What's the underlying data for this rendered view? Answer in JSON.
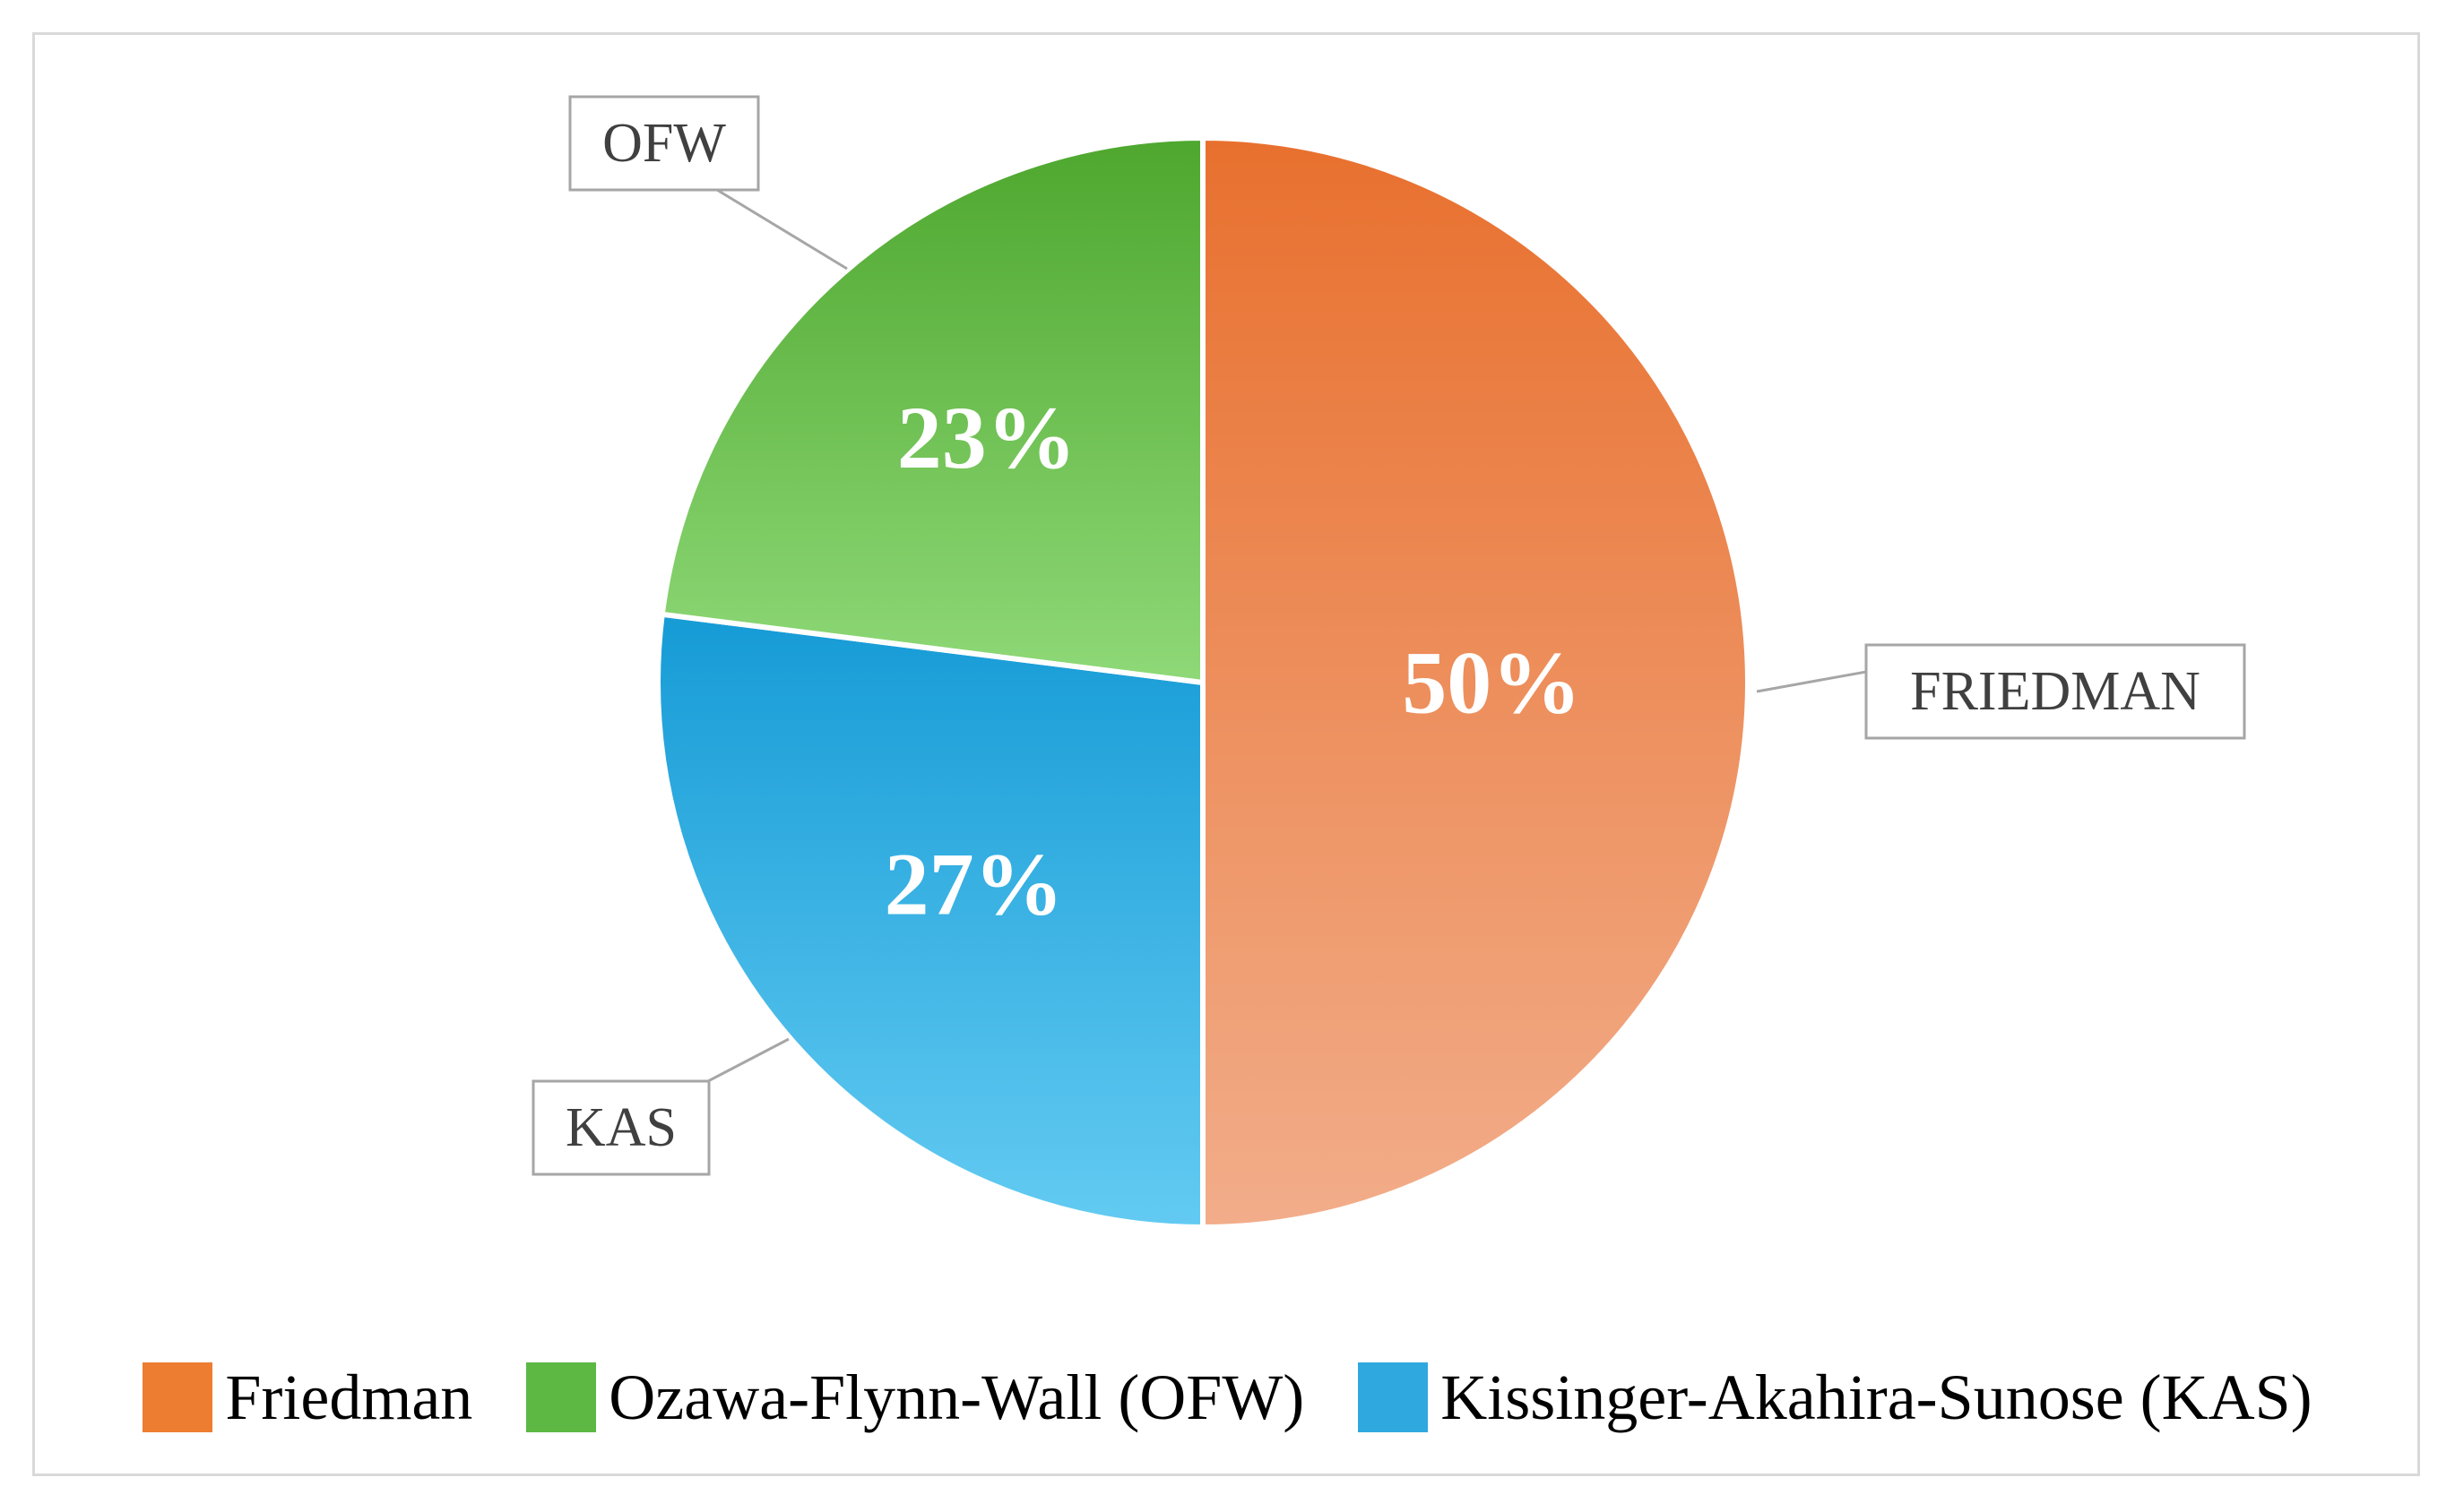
{
  "chart_data": {
    "type": "pie",
    "title": "",
    "slices": [
      {
        "name": "Friedman",
        "callout": "FRIEDMAN",
        "value": 50,
        "label": "50%",
        "color_top": "#e8702e",
        "color_bottom": "#f2ad8a",
        "legend_color": "#ed7d31"
      },
      {
        "name": "Kissinger-Akahira-Sunose (KAS)",
        "callout": "KAS",
        "value": 27,
        "label": "27%",
        "color_top": "#169bd6",
        "color_bottom": "#63cbf2",
        "legend_color": "#2fa8e0"
      },
      {
        "name": "Ozawa-Flynn-Wall (OFW)",
        "callout": "OFW",
        "value": 23,
        "label": "23%",
        "color_top": "#4ea72e",
        "color_bottom": "#8fd978",
        "legend_color": "#5cb843"
      }
    ],
    "legend": {
      "position": "bottom",
      "order": [
        "Friedman",
        "Ozawa-Flynn-Wall (OFW)",
        "Kissinger-Akahira-Sunose (KAS)"
      ]
    }
  }
}
